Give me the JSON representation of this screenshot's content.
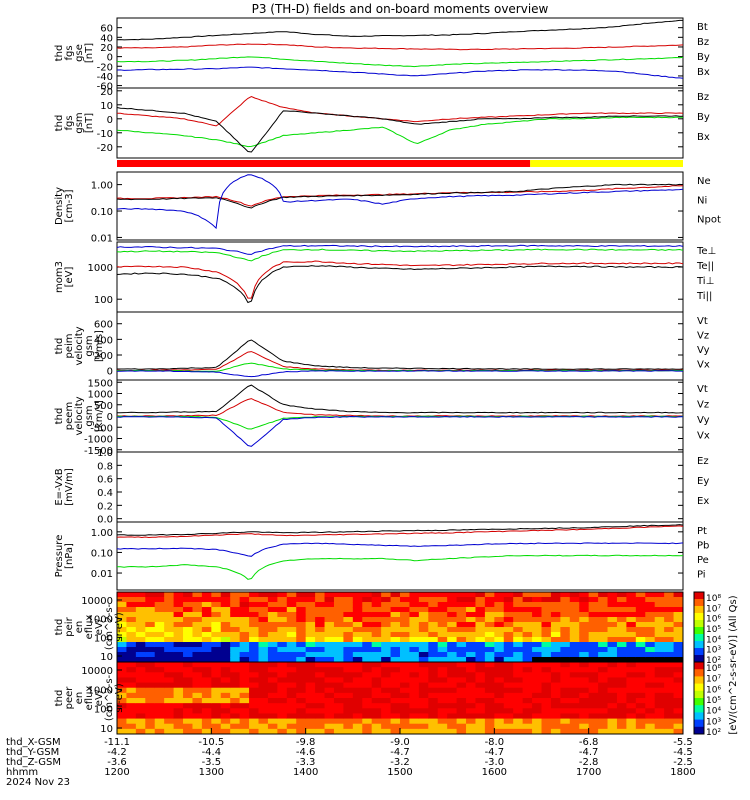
{
  "title": "P3 (TH-D) fields and on-board moments overview",
  "colors": {
    "black": "#000000",
    "red": "#d40000",
    "green": "#00dc00",
    "blue": "#0000d0",
    "yellow": "#ffff00",
    "bar_red": "#ff0000"
  },
  "chart_data": [
    {
      "type": "line",
      "id": "fgs_gse",
      "ylabel": [
        "thd",
        "fgs",
        "gse",
        "[nT]"
      ],
      "yticks": [
        "60",
        "40",
        "20",
        "0",
        "-20",
        "-40",
        "-60"
      ],
      "ylim": [
        -65,
        80
      ],
      "series": [
        {
          "name": "Bt",
          "color": "black",
          "values": [
            35,
            36,
            40,
            44,
            48,
            52,
            46,
            42,
            43,
            44,
            45,
            48,
            52,
            55,
            58,
            62,
            70,
            75
          ]
        },
        {
          "name": "Bz",
          "color": "red",
          "values": [
            18,
            18,
            20,
            24,
            26,
            25,
            20,
            18,
            17,
            16,
            15,
            15,
            16,
            17,
            18,
            20,
            22,
            24
          ]
        },
        {
          "name": "By",
          "color": "green",
          "values": [
            -10,
            -10,
            -8,
            -4,
            0,
            -5,
            -10,
            -14,
            -18,
            -20,
            -16,
            -14,
            -12,
            -10,
            -8,
            -6,
            -4,
            -2
          ]
        },
        {
          "name": "Bx",
          "color": "blue",
          "values": [
            -28,
            -27,
            -26,
            -25,
            -22,
            -25,
            -28,
            -32,
            -36,
            -40,
            -35,
            -30,
            -28,
            -27,
            -28,
            -30,
            -38,
            -45
          ]
        }
      ]
    },
    {
      "type": "line",
      "id": "fgs_gsm",
      "ylabel": [
        "thd",
        "fgs",
        "gsm",
        "[nT]"
      ],
      "yticks": [
        "20",
        "10",
        "0",
        "-10",
        "-20"
      ],
      "ylim": [
        -28,
        22
      ],
      "series": [
        {
          "name": "Bz",
          "color": "red",
          "values": [
            4,
            2,
            0,
            -5,
            16,
            8,
            4,
            2,
            0,
            -2,
            0,
            1,
            2,
            3,
            4,
            4,
            4,
            4
          ]
        },
        {
          "name": "By",
          "color": "green",
          "values": [
            -8,
            -10,
            -12,
            -15,
            -20,
            -12,
            -10,
            -8,
            -6,
            -18,
            -8,
            -4,
            -2,
            0,
            0,
            1,
            1,
            1
          ]
        },
        {
          "name": "Bx",
          "color": "black",
          "values": [
            8,
            6,
            4,
            -2,
            -25,
            6,
            4,
            2,
            0,
            -4,
            -2,
            0,
            0,
            1,
            1,
            2,
            2,
            2
          ]
        }
      ]
    },
    {
      "type": "line",
      "id": "density",
      "ylabel": [
        "Density",
        "[cm-3]"
      ],
      "scale": "log",
      "yticks": [
        "1.00",
        "0.10",
        "0.01"
      ],
      "ylim": [
        0.008,
        3.0
      ],
      "series": [
        {
          "name": "Ne",
          "color": "red",
          "values": [
            0.3,
            0.3,
            0.32,
            0.35,
            0.15,
            0.35,
            0.38,
            0.4,
            0.42,
            0.45,
            0.5,
            0.5,
            0.52,
            0.55,
            0.6,
            0.7,
            0.8,
            0.9
          ]
        },
        {
          "name": "Ni",
          "color": "black",
          "values": [
            0.28,
            0.28,
            0.3,
            0.32,
            0.12,
            0.33,
            0.36,
            0.38,
            0.4,
            0.43,
            0.48,
            0.5,
            0.55,
            0.7,
            0.85,
            1.0,
            1.0,
            1.0
          ]
        },
        {
          "name": "Npot",
          "color": "blue",
          "values": [
            0.12,
            0.12,
            0.1,
            0.02,
            2.5,
            0.22,
            0.25,
            0.28,
            0.18,
            0.3,
            0.35,
            0.38,
            0.4,
            0.45,
            0.5,
            0.55,
            0.6,
            0.65
          ]
        }
      ]
    },
    {
      "type": "line",
      "id": "mom_temp",
      "ylabel": [
        "mom3",
        "[eV]"
      ],
      "scale": "log",
      "yticks": [
        "1000",
        "100"
      ],
      "ylim": [
        40,
        6000
      ],
      "series": [
        {
          "name": "Te⊥",
          "color": "red",
          "values": [
            1000,
            1050,
            1000,
            700,
            60,
            1400,
            1500,
            1300,
            1200,
            1100,
            1150,
            1200,
            1250,
            1300,
            1300,
            1300,
            1300,
            1300
          ]
        },
        {
          "name": "Te||",
          "color": "black",
          "values": [
            600,
            650,
            600,
            450,
            50,
            1000,
            1100,
            1000,
            900,
            850,
            900,
            950,
            1000,
            1050,
            1050,
            1000,
            1000,
            1000
          ]
        },
        {
          "name": "Ti⊥",
          "color": "blue",
          "values": [
            4200,
            4200,
            4000,
            3800,
            2500,
            4500,
            4600,
            4500,
            4400,
            4300,
            4400,
            4500,
            4600,
            4600,
            4500,
            4500,
            4500,
            4500
          ]
        },
        {
          "name": "Ti||",
          "color": "green",
          "values": [
            3000,
            3100,
            3000,
            2800,
            1500,
            3400,
            3500,
            3300,
            3200,
            3100,
            3200,
            3300,
            3400,
            3500,
            3500,
            3400,
            3400,
            3400
          ]
        }
      ]
    },
    {
      "type": "line",
      "id": "peim_vel",
      "ylabel": [
        "thd",
        "peim",
        "velocity",
        "gsm",
        "[km/s]"
      ],
      "yticks": [
        "600",
        "400",
        "200",
        "0"
      ],
      "ylim": [
        -120,
        750
      ],
      "series": [
        {
          "name": "Vt",
          "color": "black",
          "values": [
            20,
            20,
            30,
            40,
            400,
            120,
            60,
            40,
            30,
            30,
            25,
            25,
            20,
            20,
            20,
            20,
            20,
            20
          ]
        },
        {
          "name": "Vz",
          "color": "red",
          "values": [
            5,
            5,
            10,
            15,
            250,
            50,
            20,
            10,
            5,
            5,
            5,
            5,
            5,
            5,
            5,
            5,
            5,
            5
          ]
        },
        {
          "name": "Vy",
          "color": "green",
          "values": [
            0,
            0,
            -5,
            -10,
            100,
            20,
            5,
            0,
            0,
            0,
            0,
            0,
            0,
            0,
            0,
            0,
            0,
            0
          ]
        },
        {
          "name": "Vx",
          "color": "blue",
          "values": [
            -5,
            -5,
            -10,
            -20,
            -80,
            -15,
            -5,
            -5,
            -5,
            -5,
            -5,
            -5,
            -5,
            -5,
            -5,
            -5,
            -5,
            -5
          ]
        }
      ]
    },
    {
      "type": "line",
      "id": "peem_vel",
      "ylabel": [
        "thd",
        "peem",
        "velocity",
        "gsm",
        "[km/s]"
      ],
      "yticks": [
        "1500",
        "1000",
        "500",
        "0",
        "-500",
        "-1000",
        "-1500"
      ],
      "ylim": [
        -1600,
        1600
      ],
      "series": [
        {
          "name": "Vt",
          "color": "black",
          "values": [
            150,
            150,
            180,
            200,
            1400,
            500,
            300,
            200,
            150,
            150,
            150,
            150,
            150,
            150,
            150,
            150,
            150,
            150
          ]
        },
        {
          "name": "Vz",
          "color": "red",
          "values": [
            0,
            0,
            10,
            30,
            800,
            150,
            50,
            20,
            0,
            0,
            0,
            0,
            0,
            0,
            0,
            0,
            0,
            0
          ]
        },
        {
          "name": "Vy",
          "color": "green",
          "values": [
            -20,
            -20,
            -30,
            -50,
            -600,
            -100,
            -30,
            -20,
            -20,
            -20,
            -20,
            -20,
            -20,
            -20,
            -20,
            -20,
            -20,
            -20
          ]
        },
        {
          "name": "Vx",
          "color": "blue",
          "values": [
            -40,
            -40,
            -50,
            -80,
            -1400,
            -150,
            -60,
            -40,
            -40,
            -40,
            -40,
            -40,
            -40,
            -40,
            -40,
            -40,
            -40,
            -40
          ]
        }
      ]
    },
    {
      "type": "line",
      "id": "efield",
      "ylabel": [
        "E=-VxB",
        "[mV/m]"
      ],
      "yticks": [
        "1.0",
        "0.8",
        "0.6",
        "0.4",
        "0.2",
        "0.0"
      ],
      "ylim": [
        -0.05,
        1.0
      ],
      "series": [
        {
          "name": "Ez",
          "color": "red",
          "values": []
        },
        {
          "name": "Ey",
          "color": "green",
          "values": []
        },
        {
          "name": "Ex",
          "color": "blue",
          "values": []
        }
      ]
    },
    {
      "type": "line",
      "id": "pressure",
      "ylabel": [
        "Pressure",
        "[nPa]"
      ],
      "scale": "log",
      "yticks": [
        "1.00",
        "0.10",
        "0.01"
      ],
      "ylim": [
        0.0015,
        3.0
      ],
      "series": [
        {
          "name": "Pt",
          "color": "black",
          "values": [
            0.7,
            0.7,
            0.75,
            0.85,
            1.0,
            0.9,
            0.95,
            1.0,
            1.1,
            1.15,
            1.2,
            1.3,
            1.4,
            1.5,
            1.6,
            1.8,
            2.0,
            2.2
          ]
        },
        {
          "name": "Pb",
          "color": "red",
          "values": [
            0.55,
            0.55,
            0.6,
            0.7,
            0.8,
            0.65,
            0.7,
            0.75,
            0.8,
            0.85,
            0.9,
            1.0,
            1.1,
            1.2,
            1.3,
            1.5,
            1.7,
            1.9
          ]
        },
        {
          "name": "Pe",
          "color": "green",
          "values": [
            0.02,
            0.02,
            0.025,
            0.02,
            0.004,
            0.04,
            0.05,
            0.05,
            0.05,
            0.04,
            0.05,
            0.06,
            0.07,
            0.07,
            0.07,
            0.07,
            0.07,
            0.07
          ]
        },
        {
          "name": "Pi",
          "color": "blue",
          "values": [
            0.15,
            0.15,
            0.16,
            0.14,
            0.06,
            0.25,
            0.28,
            0.25,
            0.22,
            0.2,
            0.22,
            0.25,
            0.27,
            0.28,
            0.28,
            0.28,
            0.28,
            0.28
          ]
        }
      ]
    },
    {
      "type": "heatmap",
      "id": "peir_eflux",
      "ylabel": [
        "thd",
        "peir",
        "en",
        "eflux",
        "eV/",
        "(cm^2-s-",
        "sr-eV)"
      ],
      "yticks": [
        "10000",
        "1000",
        "100",
        "10"
      ]
    },
    {
      "type": "heatmap",
      "id": "peer_eflux",
      "ylabel": [
        "thd",
        "peer",
        "en",
        "eflux",
        "eV/",
        "(cm^2-s-",
        "sr-eV)"
      ],
      "yticks": [
        "10000",
        "1000",
        "100",
        "10"
      ]
    }
  ],
  "colorbar": {
    "label": "[eV/(cm^2-s-sr-eV)] (All Qs)",
    "ticks": [
      "10⁸",
      "10⁷",
      "10⁶",
      "10⁵",
      "10⁴",
      "10³",
      "10²"
    ]
  },
  "status_bar": {
    "segments": [
      {
        "color": "bar_red",
        "from": 0,
        "to": 0.73
      },
      {
        "color": "yellow",
        "from": 0.73,
        "to": 1.0
      }
    ]
  },
  "x_axis": {
    "rows": [
      {
        "label": "thd_X-GSM",
        "values": [
          "-11.1",
          "-10.5",
          "-9.8",
          "-9.0",
          "-8.0",
          "-6.8",
          "-5.5"
        ]
      },
      {
        "label": "thd_Y-GSM",
        "values": [
          "-4.2",
          "-4.4",
          "-4.6",
          "-4.7",
          "-4.7",
          "-4.7",
          "-4.5"
        ]
      },
      {
        "label": "thd_Z-GSM",
        "values": [
          "-3.6",
          "-3.5",
          "-3.3",
          "-3.2",
          "-3.0",
          "-2.8",
          "-2.5"
        ]
      },
      {
        "label": "hhmm",
        "values": [
          "1200",
          "1300",
          "1400",
          "1500",
          "1600",
          "1700",
          "1800"
        ]
      }
    ],
    "date": "2024 Nov 23"
  }
}
